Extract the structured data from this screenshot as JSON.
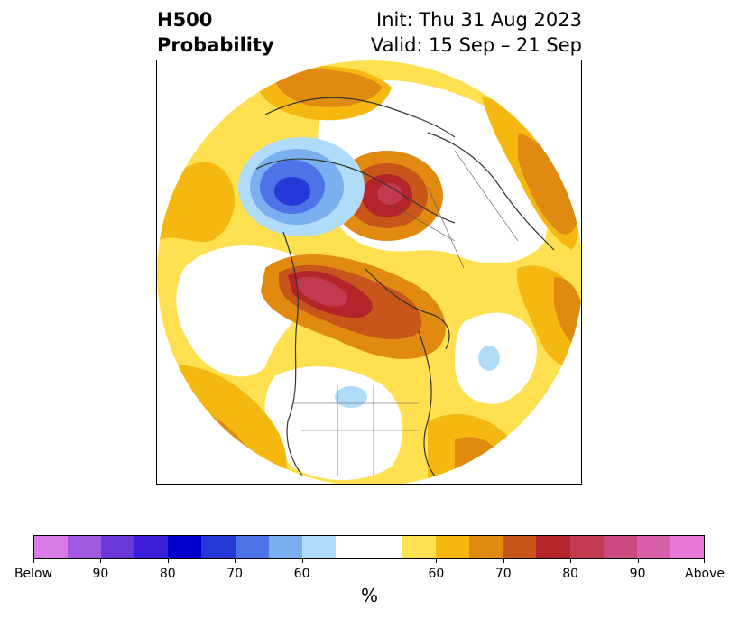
{
  "title": {
    "variable": "H500",
    "product": "Probability",
    "init": "Init: Thu 31 Aug 2023",
    "valid": "Valid: 15 Sep – 21 Sep"
  },
  "map": {
    "projection": "north-polar stereographic",
    "domain": "Northern Hemisphere",
    "anomaly_centers": [
      {
        "region": "Northwest North America / Western Canada",
        "category": "above",
        "peak_percent": 80
      },
      {
        "region": "Hudson Bay",
        "category": "above",
        "peak_percent": 70
      },
      {
        "region": "Scandinavia / Western Russia",
        "category": "above",
        "peak_percent": 80
      },
      {
        "region": "Northern Siberia / Laptev Sea",
        "category": "below",
        "peak_percent": 80
      },
      {
        "region": "Eastern Asia (Siberia coast)",
        "category": "above",
        "peak_percent": 70
      },
      {
        "region": "Southern Greenland / North Atlantic",
        "category": "above",
        "peak_percent": 65
      },
      {
        "region": "Central North Atlantic",
        "category": "below",
        "peak_percent": 60
      },
      {
        "region": "Central United States",
        "category": "below",
        "peak_percent": 60
      },
      {
        "region": "North Pacific",
        "category": "above",
        "peak_percent": 65
      }
    ]
  },
  "colorbar": {
    "unit": "%",
    "tick_labels": [
      "Below",
      "90",
      "80",
      "70",
      "60",
      "60",
      "70",
      "80",
      "90",
      "Above"
    ],
    "colors": [
      "#d87ae8",
      "#a05ae0",
      "#6a38d8",
      "#3a1ed8",
      "#0000cc",
      "#2838d8",
      "#4c74e8",
      "#78b0f0",
      "#b0dcfa",
      "#ffffff",
      "#ffe050",
      "#f4b810",
      "#e08a12",
      "#c8561a",
      "#b4242a",
      "#c23a50",
      "#cc4a80",
      "#d860a8",
      "#e878d8"
    ]
  }
}
